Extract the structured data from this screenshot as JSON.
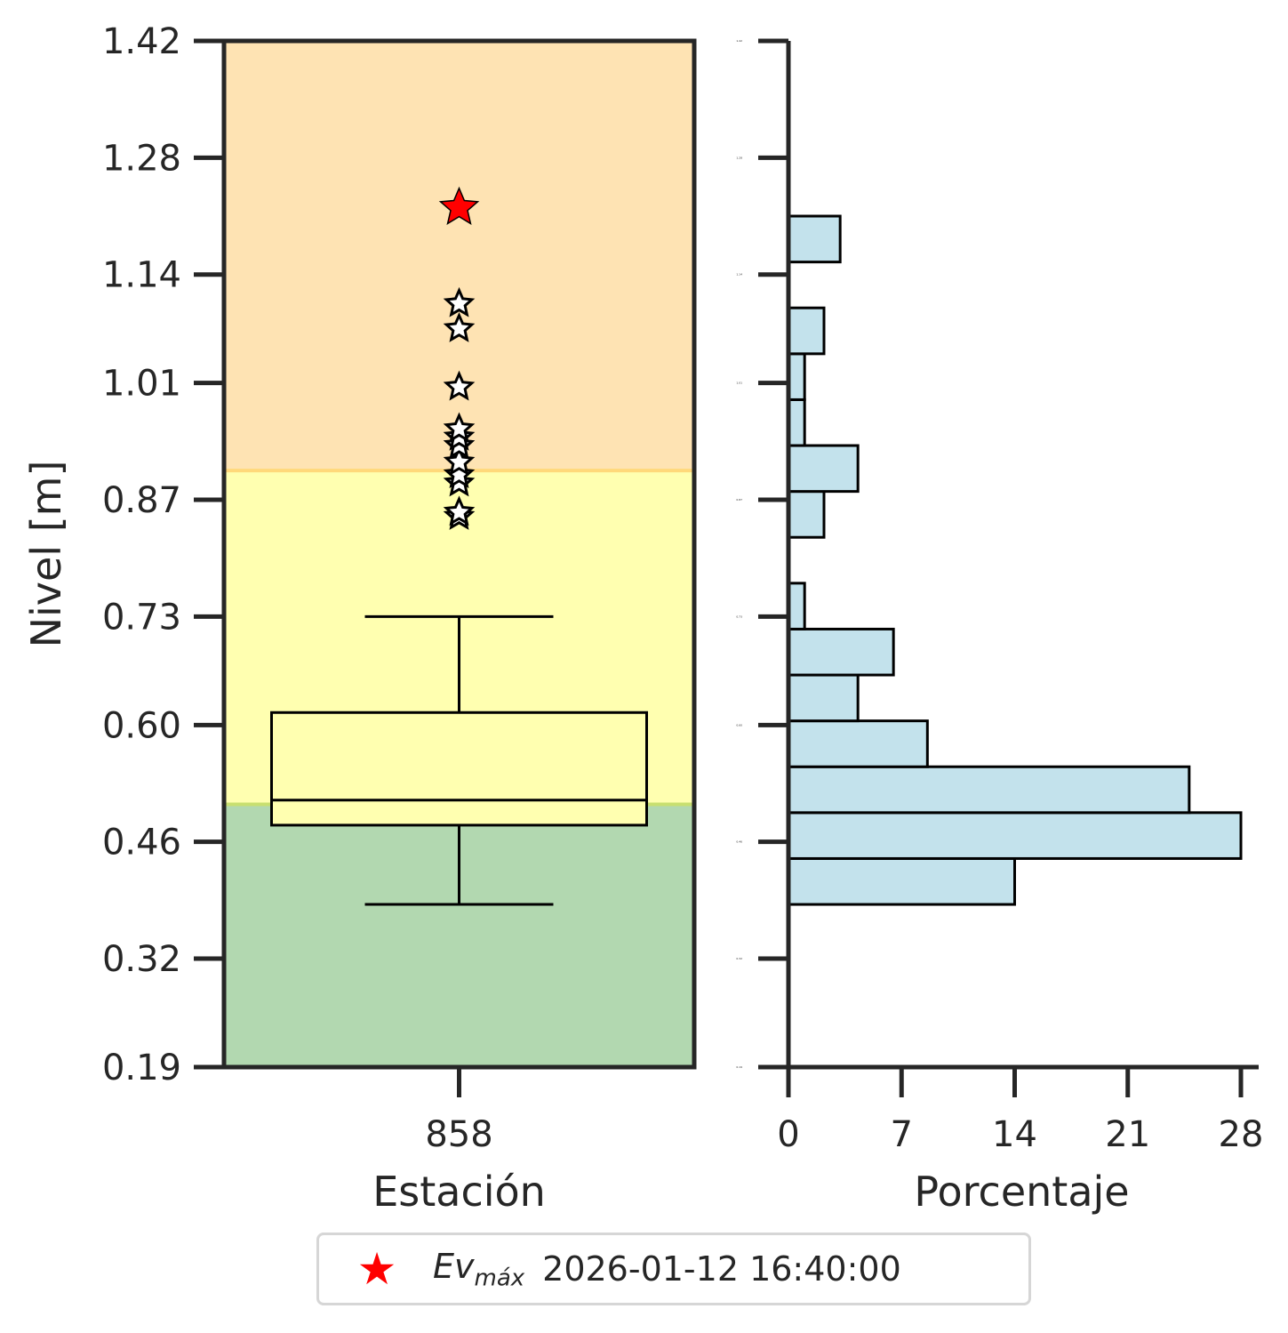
{
  "chart_data": [
    {
      "type": "box",
      "xlabel": "Estación",
      "ylabel": "Nivel [m]",
      "categories": [
        "858"
      ],
      "ylim": [
        0.19,
        1.42
      ],
      "yticks": [
        "0.19",
        "0.32",
        "0.46",
        "0.60",
        "0.73",
        "0.87",
        "1.01",
        "1.14",
        "1.28",
        "1.42"
      ],
      "bands": [
        {
          "from": 0.19,
          "to": 0.505,
          "color": "#b2d8b0"
        },
        {
          "from": 0.505,
          "to": 0.905,
          "color": "#ffffb0"
        },
        {
          "from": 0.905,
          "to": 1.42,
          "color": "#fee3b3"
        }
      ],
      "box": {
        "whisker_low": 0.385,
        "q1": 0.48,
        "median": 0.51,
        "q3": 0.615,
        "whisker_high": 0.73
      },
      "outliers": [
        0.85,
        0.855,
        0.89,
        0.9,
        0.915,
        0.935,
        0.945,
        0.955,
        1.005,
        1.075,
        1.105
      ],
      "max_event": 1.22,
      "max_event_color": "#ff0000"
    },
    {
      "type": "bar",
      "orientation": "horizontal",
      "xlabel": "Porcentaje",
      "xlim": [
        0,
        29.1
      ],
      "xticks": [
        "0",
        "7",
        "14",
        "21",
        "28"
      ],
      "bar_color": "#c3e2ec",
      "bins": [
        {
          "from": 0.385,
          "to": 0.44,
          "value": 14.0
        },
        {
          "from": 0.44,
          "to": 0.495,
          "value": 28.0
        },
        {
          "from": 0.495,
          "to": 0.55,
          "value": 24.8
        },
        {
          "from": 0.55,
          "to": 0.605,
          "value": 8.6
        },
        {
          "from": 0.605,
          "to": 0.66,
          "value": 4.3
        },
        {
          "from": 0.66,
          "to": 0.715,
          "value": 6.5
        },
        {
          "from": 0.715,
          "to": 0.77,
          "value": 1.0
        },
        {
          "from": 0.825,
          "to": 0.88,
          "value": 2.2
        },
        {
          "from": 0.88,
          "to": 0.935,
          "value": 4.3
        },
        {
          "from": 0.935,
          "to": 0.99,
          "value": 1.0
        },
        {
          "from": 0.99,
          "to": 1.045,
          "value": 1.0
        },
        {
          "from": 1.045,
          "to": 1.1,
          "value": 2.2
        },
        {
          "from": 1.155,
          "to": 1.21,
          "value": 3.2
        }
      ]
    }
  ],
  "legend": {
    "symbol": "★",
    "ev_main": "Ev",
    "ev_sub": "máx",
    "date": "2026-01-12 16:40:00"
  }
}
